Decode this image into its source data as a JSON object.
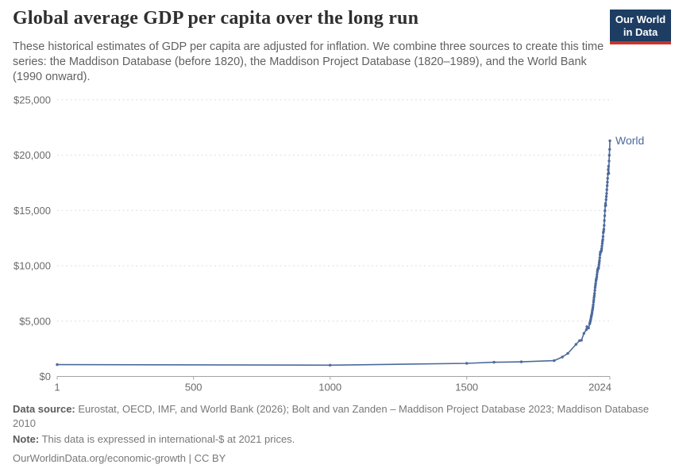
{
  "header": {
    "title": "Global average GDP per capita over the long run",
    "subtitle": "These historical estimates of GDP per capita are adjusted for inflation. We combine three sources to create this time series: the Maddison Database (before 1820), the Maddison Project Database (1820–1989), and the World Bank (1990 onward)."
  },
  "logo": {
    "line1": "Our World",
    "line2": "in Data",
    "bg_color": "#1d3d63",
    "accent_color": "#c9332a"
  },
  "chart_data": {
    "type": "line",
    "title": "Global average GDP per capita over the long run",
    "xlabel": "",
    "ylabel": "",
    "xlim": [
      1,
      2024
    ],
    "ylim": [
      0,
      25000
    ],
    "grid": true,
    "legend_position": "end-of-line",
    "grid_color": "#dedede",
    "axis_color": "#a3a3a3",
    "tick_color": "#6b6b6b",
    "yticks": [
      {
        "value": 0,
        "label": "$0"
      },
      {
        "value": 5000,
        "label": "$5,000"
      },
      {
        "value": 10000,
        "label": "$10,000"
      },
      {
        "value": 15000,
        "label": "$15,000"
      },
      {
        "value": 20000,
        "label": "$20,000"
      },
      {
        "value": 25000,
        "label": "$25,000"
      }
    ],
    "xticks": [
      {
        "value": 1,
        "label": "1"
      },
      {
        "value": 500,
        "label": "500"
      },
      {
        "value": 1000,
        "label": "1000"
      },
      {
        "value": 1500,
        "label": "1500"
      },
      {
        "value": 2024,
        "label": "2024"
      }
    ],
    "series": [
      {
        "name": "World",
        "color": "#4c6a9c",
        "points": [
          [
            1,
            1070
          ],
          [
            1000,
            1020
          ],
          [
            1500,
            1180
          ],
          [
            1600,
            1280
          ],
          [
            1700,
            1320
          ],
          [
            1820,
            1430
          ],
          [
            1850,
            1760
          ],
          [
            1870,
            2080
          ],
          [
            1900,
            2900
          ],
          [
            1913,
            3240
          ],
          [
            1920,
            3270
          ],
          [
            1929,
            3890
          ],
          [
            1938,
            4230
          ],
          [
            1940,
            4500
          ],
          [
            1946,
            4370
          ],
          [
            1950,
            4740
          ],
          [
            1951,
            4860
          ],
          [
            1952,
            4950
          ],
          [
            1953,
            5060
          ],
          [
            1954,
            5140
          ],
          [
            1955,
            5310
          ],
          [
            1956,
            5440
          ],
          [
            1957,
            5540
          ],
          [
            1958,
            5650
          ],
          [
            1959,
            5810
          ],
          [
            1960,
            5990
          ],
          [
            1961,
            6100
          ],
          [
            1962,
            6270
          ],
          [
            1963,
            6470
          ],
          [
            1964,
            6700
          ],
          [
            1965,
            6900
          ],
          [
            1966,
            7120
          ],
          [
            1967,
            7300
          ],
          [
            1968,
            7510
          ],
          [
            1969,
            7780
          ],
          [
            1970,
            8030
          ],
          [
            1971,
            8220
          ],
          [
            1972,
            8410
          ],
          [
            1973,
            8640
          ],
          [
            1974,
            8760
          ],
          [
            1975,
            8840
          ],
          [
            1976,
            9010
          ],
          [
            1977,
            9230
          ],
          [
            1978,
            9440
          ],
          [
            1979,
            9610
          ],
          [
            1980,
            9720
          ],
          [
            1981,
            9760
          ],
          [
            1982,
            9740
          ],
          [
            1983,
            9890
          ],
          [
            1984,
            10090
          ],
          [
            1985,
            10280
          ],
          [
            1986,
            10470
          ],
          [
            1987,
            10720
          ],
          [
            1988,
            11000
          ],
          [
            1989,
            11180
          ],
          [
            1990,
            11260
          ],
          [
            1991,
            11270
          ],
          [
            1992,
            11300
          ],
          [
            1993,
            11390
          ],
          [
            1994,
            11560
          ],
          [
            1995,
            11770
          ],
          [
            1996,
            12000
          ],
          [
            1997,
            12220
          ],
          [
            1998,
            12370
          ],
          [
            1999,
            12650
          ],
          [
            2000,
            13000
          ],
          [
            2001,
            13130
          ],
          [
            2002,
            13300
          ],
          [
            2003,
            13650
          ],
          [
            2004,
            14090
          ],
          [
            2005,
            14520
          ],
          [
            2006,
            14980
          ],
          [
            2007,
            15420
          ],
          [
            2008,
            15630
          ],
          [
            2009,
            15450
          ],
          [
            2010,
            15980
          ],
          [
            2011,
            16260
          ],
          [
            2012,
            16530
          ],
          [
            2013,
            16880
          ],
          [
            2014,
            17240
          ],
          [
            2015,
            17560
          ],
          [
            2016,
            17900
          ],
          [
            2017,
            18300
          ],
          [
            2018,
            18700
          ],
          [
            2019,
            19000
          ],
          [
            2020,
            18350
          ],
          [
            2021,
            19470
          ],
          [
            2022,
            19990
          ],
          [
            2023,
            20520
          ],
          [
            2024,
            21300
          ]
        ]
      }
    ]
  },
  "footer": {
    "data_source_label": "Data source:",
    "data_source_text": "Eurostat, OECD, IMF, and World Bank (2026); Bolt and van Zanden – Maddison Project Database 2023; Maddison Database 2010",
    "note_label": "Note:",
    "note_text": "This data is expressed in international-$ at 2021 prices.",
    "citation_link": "OurWorldinData.org/economic-growth",
    "citation_suffix": "| CC BY"
  }
}
